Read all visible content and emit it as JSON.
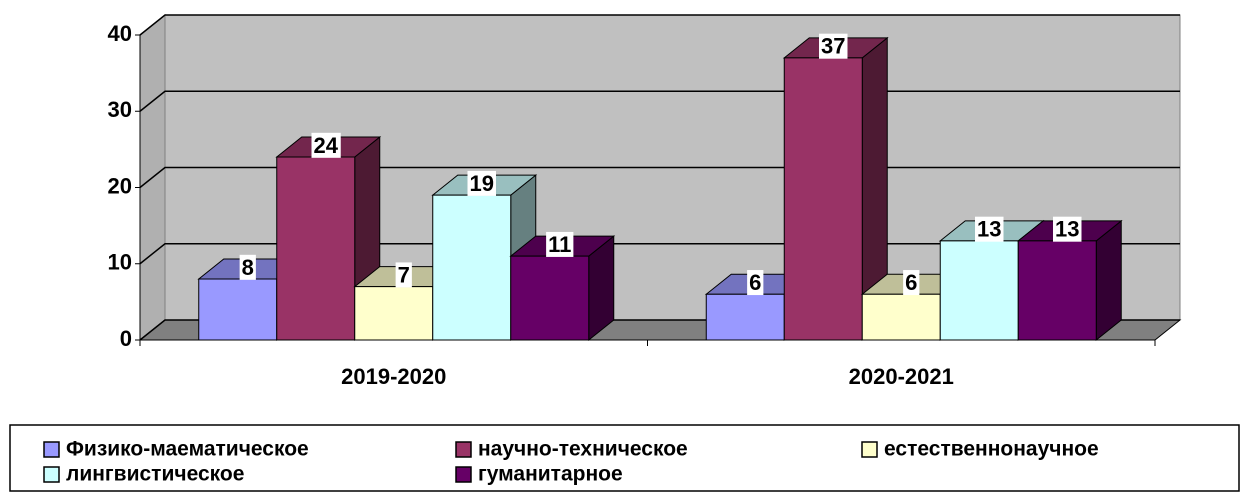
{
  "chart_data": {
    "type": "bar3d",
    "categories": [
      "2019-2020",
      "2020-2021"
    ],
    "series": [
      {
        "name": "Физико-маематическое",
        "color": "#9999ff",
        "values": [
          8,
          6
        ]
      },
      {
        "name": "научно-техническое",
        "color": "#993366",
        "values": [
          24,
          37
        ]
      },
      {
        "name": "естественнонаучное",
        "color": "#ffffcc",
        "values": [
          7,
          6
        ]
      },
      {
        "name": "лингвистическое",
        "color": "#ccffff",
        "values": [
          19,
          13
        ]
      },
      {
        "name": "гуманитарное",
        "color": "#660066",
        "values": [
          11,
          13
        ]
      }
    ],
    "ylim": [
      0,
      40
    ],
    "yticks": [
      0,
      10,
      20,
      30,
      40
    ],
    "grid": true,
    "legend": "bottom"
  }
}
